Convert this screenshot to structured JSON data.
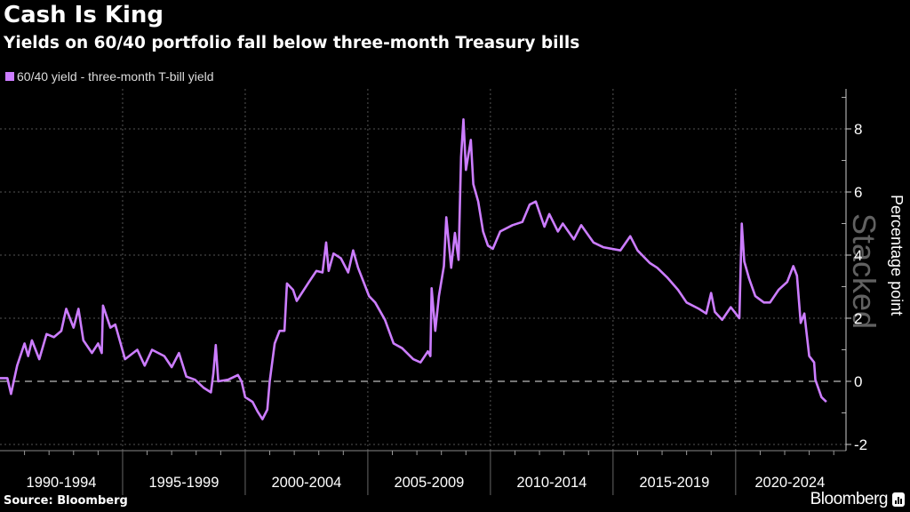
{
  "title": "Cash Is King",
  "subtitle": "Yields on 60/40 portfolio fall below three-month Treasury bills",
  "source": "Source: Bloomberg",
  "logo_text": "Bloomberg",
  "chart_data": {
    "type": "line",
    "title": "Cash Is King",
    "subtitle": "Yields on 60/40 portfolio fall below three-month Treasury bills",
    "ylabel": "Percentage point",
    "watermark": "Stacked",
    "xlim": [
      1990,
      2024.5
    ],
    "ylim": [
      -2.2,
      9.2
    ],
    "yticks": [
      -2,
      0,
      2,
      4,
      6,
      8
    ],
    "x_category_labels": [
      "1990-1994",
      "1995-1999",
      "2000-2004",
      "2005-2009",
      "2010-2014",
      "2015-2019",
      "2020-2024"
    ],
    "grid": true,
    "legend_position": "top-left",
    "series": [
      {
        "name": "60/40 yield - three-month T-bill yield",
        "color": "#cc7dff",
        "x": [
          1990.0,
          1990.3,
          1990.45,
          1990.7,
          1991.0,
          1991.15,
          1991.3,
          1991.6,
          1991.9,
          1992.2,
          1992.5,
          1992.7,
          1993.0,
          1993.2,
          1993.4,
          1993.75,
          1994.0,
          1994.15,
          1994.2,
          1994.5,
          1994.7,
          1995.1,
          1995.6,
          1995.9,
          1996.2,
          1996.7,
          1997.0,
          1997.3,
          1997.6,
          1997.95,
          1998.3,
          1998.6,
          1998.7,
          1998.8,
          1998.9,
          1999.3,
          1999.7,
          1999.85,
          2000.0,
          2000.3,
          2000.5,
          2000.7,
          2000.9,
          2001.0,
          2001.2,
          2001.4,
          2001.6,
          2001.7,
          2001.95,
          2002.1,
          2002.6,
          2002.9,
          2003.15,
          2003.3,
          2003.4,
          2003.6,
          2003.9,
          2004.2,
          2004.4,
          2004.6,
          2005.05,
          2005.3,
          2005.7,
          2006.05,
          2006.4,
          2006.85,
          2007.15,
          2007.45,
          2007.55,
          2007.6,
          2007.75,
          2007.9,
          2008.1,
          2008.2,
          2008.4,
          2008.55,
          2008.7,
          2008.8,
          2008.9,
          2009.0,
          2009.2,
          2009.3,
          2009.5,
          2009.7,
          2009.9,
          2010.1,
          2010.4,
          2010.9,
          2011.3,
          2011.6,
          2011.85,
          2012.2,
          2012.4,
          2012.75,
          2012.95,
          2013.4,
          2013.7,
          2014.2,
          2014.6,
          2015.3,
          2015.7,
          2016.0,
          2016.5,
          2016.8,
          2017.2,
          2017.65,
          2018.0,
          2018.5,
          2018.8,
          2019.0,
          2019.15,
          2019.45,
          2019.8,
          2020.15,
          2020.25,
          2020.35,
          2020.55,
          2020.8,
          2021.15,
          2021.4,
          2021.75,
          2022.1,
          2022.35,
          2022.5,
          2022.65,
          2022.8,
          2023.0,
          2023.2,
          2023.25,
          2023.5,
          2023.7
        ],
        "y": [
          0.1,
          0.1,
          -0.4,
          0.5,
          1.2,
          0.8,
          1.3,
          0.7,
          1.5,
          1.4,
          1.6,
          2.3,
          1.7,
          2.3,
          1.3,
          0.9,
          1.2,
          0.9,
          2.4,
          1.7,
          1.8,
          0.7,
          1.0,
          0.5,
          1.0,
          0.8,
          0.45,
          0.9,
          0.15,
          0.05,
          -0.2,
          -0.35,
          0.25,
          1.15,
          0.0,
          0.05,
          0.2,
          0.0,
          -0.5,
          -0.65,
          -0.95,
          -1.2,
          -0.9,
          0.0,
          1.2,
          1.6,
          1.6,
          3.1,
          2.9,
          2.55,
          3.15,
          3.5,
          3.45,
          4.4,
          3.5,
          4.05,
          3.9,
          3.45,
          4.15,
          3.6,
          2.7,
          2.5,
          1.95,
          1.2,
          1.05,
          0.7,
          0.6,
          0.95,
          0.8,
          2.95,
          1.6,
          2.7,
          3.65,
          5.2,
          3.6,
          4.7,
          3.85,
          7.1,
          8.3,
          6.7,
          7.65,
          6.25,
          5.7,
          4.75,
          4.3,
          4.2,
          4.75,
          4.95,
          5.05,
          5.6,
          5.7,
          4.9,
          5.3,
          4.75,
          5.0,
          4.5,
          4.95,
          4.4,
          4.25,
          4.15,
          4.6,
          4.15,
          3.75,
          3.6,
          3.3,
          2.9,
          2.5,
          2.3,
          2.15,
          2.8,
          2.2,
          1.95,
          2.35,
          2.0,
          5.0,
          3.8,
          3.25,
          2.7,
          2.5,
          2.5,
          2.9,
          3.15,
          3.65,
          3.35,
          1.85,
          2.15,
          0.8,
          0.6,
          0.05,
          -0.5,
          -0.65
        ]
      }
    ]
  }
}
